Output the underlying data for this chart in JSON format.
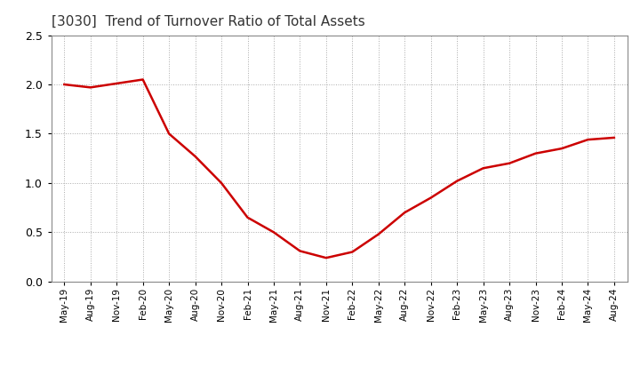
{
  "title": "[3030]  Trend of Turnover Ratio of Total Assets",
  "title_fontsize": 11,
  "line_color": "#cc0000",
  "line_width": 1.8,
  "background_color": "#ffffff",
  "plot_bg_color": "#ffffff",
  "grid_color": "#aaaaaa",
  "grid_linestyle": ":",
  "ylim": [
    0.0,
    2.5
  ],
  "yticks": [
    0.0,
    0.5,
    1.0,
    1.5,
    2.0,
    2.5
  ],
  "values": [
    2.0,
    1.97,
    2.01,
    2.05,
    1.5,
    1.27,
    1.0,
    0.65,
    0.5,
    0.31,
    0.24,
    0.3,
    0.48,
    0.7,
    0.85,
    1.02,
    1.15,
    1.2,
    1.3,
    1.35,
    1.44,
    1.46
  ],
  "xtick_labels": [
    "May-19",
    "Aug-19",
    "Nov-19",
    "Feb-20",
    "May-20",
    "Aug-20",
    "Nov-20",
    "Feb-21",
    "May-21",
    "Aug-21",
    "Nov-21",
    "Feb-22",
    "May-22",
    "Aug-22",
    "Nov-22",
    "Feb-23",
    "May-23",
    "Aug-23",
    "Nov-23",
    "Feb-24",
    "May-24",
    "Aug-24"
  ]
}
